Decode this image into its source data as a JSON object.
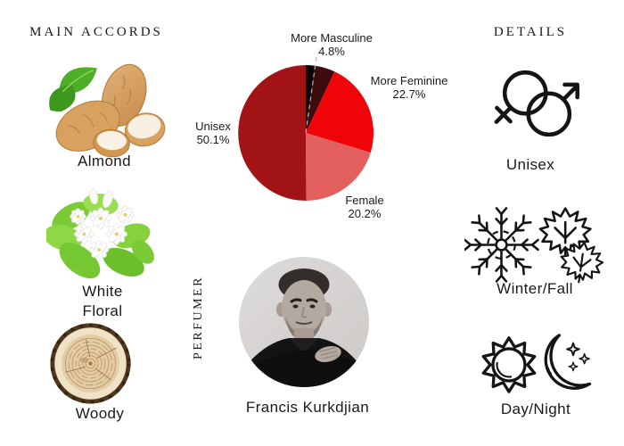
{
  "page": {
    "background": "#ffffff",
    "text_color": "#1a1a1a"
  },
  "main_accords": {
    "title": "MAIN ACCORDS",
    "items": [
      {
        "icon": "almond-icon",
        "label": "Almond"
      },
      {
        "icon": "white-floral-icon",
        "label": "White Floral",
        "line1": "White",
        "line2": "Floral"
      },
      {
        "icon": "wood-slice-icon",
        "label": "Woody"
      }
    ]
  },
  "details": {
    "title": "DETAILS",
    "items": [
      {
        "icon": "unisex-gender-icon",
        "label": "Unisex"
      },
      {
        "icon": "snowflake-maple-icon",
        "label": "Winter/Fall"
      },
      {
        "icon": "sun-moon-icon",
        "label": "Day/Night"
      }
    ]
  },
  "perfumer": {
    "section_title": "PERFUMER",
    "name": "Francis Kurkdjian"
  },
  "chart_data": {
    "type": "pie",
    "title": "",
    "legend_position": "outside-labels",
    "start_angle_deg": 0,
    "direction": "clockwise",
    "slices": [
      {
        "label": "",
        "value": 2.2,
        "pct_text": "",
        "color": "#0B0306",
        "label_visible": false
      },
      {
        "label": "More Masculine",
        "value": 4.8,
        "pct_text": "4.8%",
        "color": "#3F0C0D",
        "label_visible": true
      },
      {
        "label": "More Feminine",
        "value": 22.7,
        "pct_text": "22.7%",
        "color": "#EE0409",
        "label_visible": true
      },
      {
        "label": "Female",
        "value": 20.2,
        "pct_text": "20.2%",
        "color": "#E4605E",
        "label_visible": true
      },
      {
        "label": "Unisex",
        "value": 50.1,
        "pct_text": "50.1%",
        "color": "#A21316",
        "label_visible": true
      }
    ],
    "leader_line_color": "#b5b5b5"
  }
}
